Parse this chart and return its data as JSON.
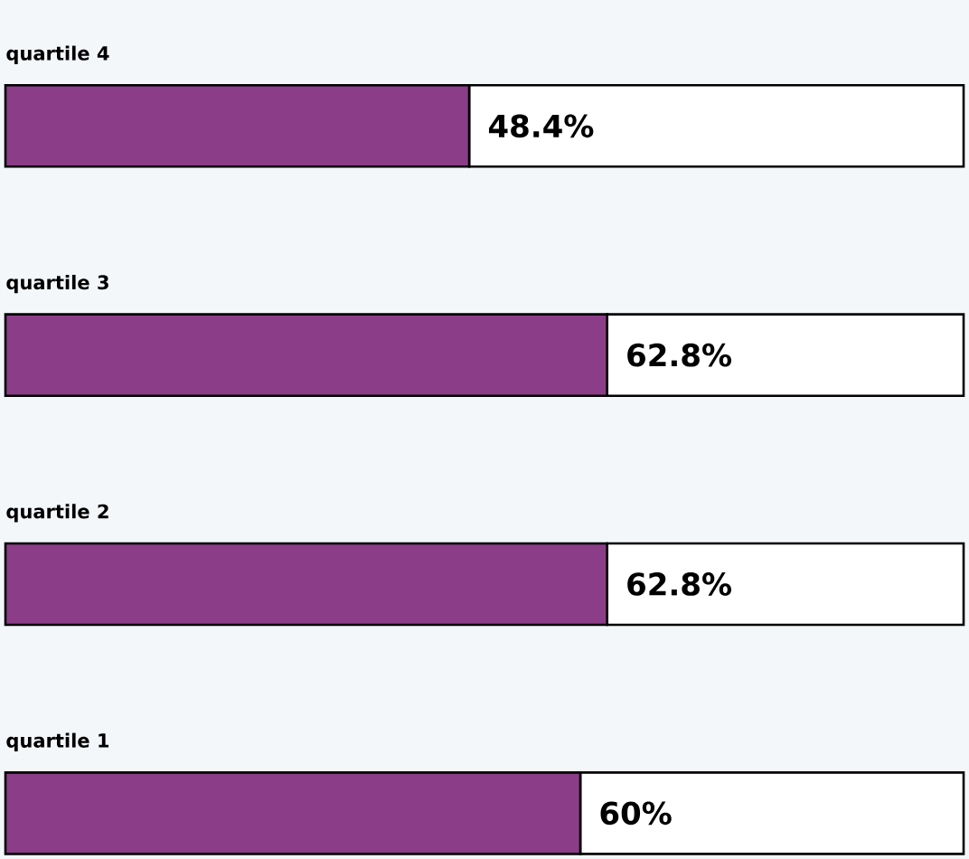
{
  "chart_data": {
    "type": "bar",
    "orientation": "horizontal",
    "stacked": true,
    "categories": [
      "quartile 4",
      "quartile 3",
      "quartile 2",
      "quartile 1"
    ],
    "series": [
      {
        "color": "#8b3d88",
        "values": [
          48.4,
          62.8,
          62.8,
          60
        ],
        "value_labels": [
          "48.4%",
          "62.8%",
          "62.8%",
          "60%"
        ]
      },
      {
        "color": "#ffffff",
        "values": [
          51.6,
          37.2,
          37.2,
          40
        ]
      }
    ],
    "xlim": [
      0,
      100
    ]
  }
}
